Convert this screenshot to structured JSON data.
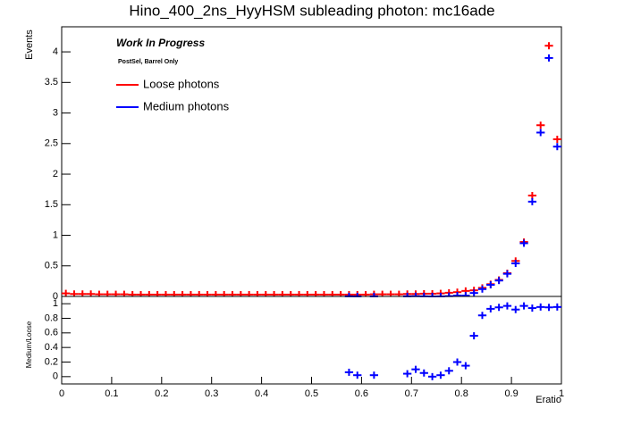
{
  "chart_data": [
    {
      "type": "histogram",
      "title": "Hino_400_2ns_HyyHSM subleading photon: mc16ade",
      "y_label": "Events",
      "annotations": [
        "Work In Progress",
        "PostSel, Barrel Only"
      ],
      "bins": [
        0,
        0.0167,
        0.0333,
        0.05,
        0.0667,
        0.0833,
        0.1,
        0.1167,
        0.1333,
        0.15,
        0.1667,
        0.1833,
        0.2,
        0.2167,
        0.2333,
        0.25,
        0.2667,
        0.2833,
        0.3,
        0.3167,
        0.3333,
        0.35,
        0.3667,
        0.3833,
        0.4,
        0.4167,
        0.4333,
        0.45,
        0.4667,
        0.4833,
        0.5,
        0.5167,
        0.5333,
        0.55,
        0.5667,
        0.5833,
        0.6,
        0.6167,
        0.6333,
        0.65,
        0.6667,
        0.6833,
        0.7,
        0.7167,
        0.7333,
        0.75,
        0.7667,
        0.7833,
        0.8,
        0.8167,
        0.8333,
        0.85,
        0.8667,
        0.8833,
        0.9,
        0.9167,
        0.9333,
        0.95,
        0.9667,
        0.9833,
        1
      ],
      "xlim": [
        0,
        1
      ],
      "ylim": [
        0,
        4.41
      ],
      "yticks": [
        0,
        0.5,
        1,
        1.5,
        2,
        2.5,
        3,
        3.5,
        4
      ],
      "series": [
        {
          "name": "Loose photons",
          "color": "#ff0000",
          "values": [
            0.05,
            0.04,
            0.04,
            0.04,
            0.035,
            0.035,
            0.035,
            0.035,
            0.03,
            0.03,
            0.03,
            0.03,
            0.03,
            0.03,
            0.03,
            0.03,
            0.03,
            0.03,
            0.03,
            0.03,
            0.03,
            0.03,
            0.03,
            0.03,
            0.03,
            0.03,
            0.03,
            0.03,
            0.03,
            0.03,
            0.03,
            0.03,
            0.03,
            0.03,
            0.03,
            0.03,
            0.03,
            0.035,
            0.035,
            0.035,
            0.035,
            0.04,
            0.04,
            0.045,
            0.045,
            0.05,
            0.06,
            0.07,
            0.09,
            0.1,
            0.14,
            0.2,
            0.27,
            0.38,
            0.58,
            0.89,
            1.65,
            2.8,
            4.1,
            2.57
          ]
        },
        {
          "name": "Medium photons",
          "color": "#0000ff",
          "values": [
            null,
            null,
            null,
            null,
            null,
            null,
            null,
            null,
            null,
            null,
            null,
            null,
            null,
            null,
            null,
            null,
            null,
            null,
            null,
            null,
            null,
            null,
            null,
            null,
            null,
            null,
            null,
            null,
            null,
            null,
            null,
            null,
            null,
            null,
            0.002,
            0.001,
            null,
            0.001,
            null,
            null,
            null,
            0.002,
            0.004,
            0.002,
            0,
            0.001,
            0.005,
            0.014,
            0.013,
            0.056,
            0.12,
            0.19,
            0.26,
            0.37,
            0.54,
            0.87,
            1.55,
            2.68,
            3.9,
            2.45
          ]
        }
      ]
    },
    {
      "type": "histogram",
      "x_label": "Eratio",
      "y_label": "Medium/Loose",
      "bins": [
        0,
        0.0167,
        0.0333,
        0.05,
        0.0667,
        0.0833,
        0.1,
        0.1167,
        0.1333,
        0.15,
        0.1667,
        0.1833,
        0.2,
        0.2167,
        0.2333,
        0.25,
        0.2667,
        0.2833,
        0.3,
        0.3167,
        0.3333,
        0.35,
        0.3667,
        0.3833,
        0.4,
        0.4167,
        0.4333,
        0.45,
        0.4667,
        0.4833,
        0.5,
        0.5167,
        0.5333,
        0.55,
        0.5667,
        0.5833,
        0.6,
        0.6167,
        0.6333,
        0.65,
        0.6667,
        0.6833,
        0.7,
        0.7167,
        0.7333,
        0.75,
        0.7667,
        0.7833,
        0.8,
        0.8167,
        0.8333,
        0.85,
        0.8667,
        0.8833,
        0.9,
        0.9167,
        0.9333,
        0.95,
        0.9667,
        0.9833,
        1
      ],
      "xlim": [
        0,
        1
      ],
      "xticks": [
        0,
        0.1,
        0.2,
        0.3,
        0.4,
        0.5,
        0.6,
        0.7,
        0.8,
        0.9,
        1
      ],
      "ylim": [
        -0.1,
        1.1
      ],
      "yticks": [
        0,
        0.2,
        0.4,
        0.6,
        0.8,
        1
      ],
      "series": [
        {
          "color": "#0000ff",
          "values": [
            null,
            null,
            null,
            null,
            null,
            null,
            null,
            null,
            null,
            null,
            null,
            null,
            null,
            null,
            null,
            null,
            null,
            null,
            null,
            null,
            null,
            null,
            null,
            null,
            null,
            null,
            null,
            null,
            null,
            null,
            null,
            null,
            null,
            null,
            0.06,
            0.02,
            null,
            0.02,
            null,
            null,
            null,
            0.04,
            0.1,
            0.05,
            0,
            0.02,
            0.08,
            0.2,
            0.15,
            0.56,
            0.84,
            0.93,
            0.95,
            0.97,
            0.92,
            0.97,
            0.94,
            0.955,
            0.95,
            0.955
          ]
        }
      ]
    }
  ]
}
